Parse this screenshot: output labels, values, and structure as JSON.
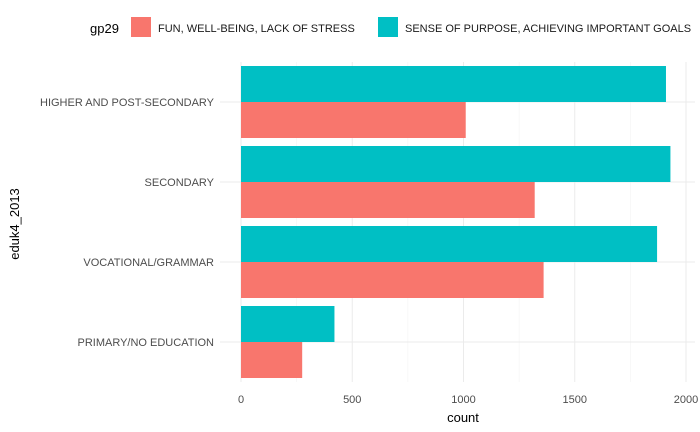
{
  "chart_data": {
    "type": "bar",
    "orientation": "horizontal",
    "xlabel": "count",
    "ylabel": "eduk4_2013",
    "xlim": [
      0,
      2030
    ],
    "x_ticks": [
      0,
      500,
      1000,
      1500,
      2000
    ],
    "x_tick_labels": [
      "0",
      "500",
      "1000",
      "1500",
      "2000"
    ],
    "grid": true,
    "legend_position": "top",
    "legend_title": "gp29",
    "categories": [
      "HIGHER AND POST-SECONDARY",
      "SECONDARY",
      "VOCATIONAL/GRAMMAR",
      "PRIMARY/NO EDUCATION"
    ],
    "series": [
      {
        "name": "FUN, WELL-BEING, LACK OF STRESS",
        "color": "#F8766D",
        "values": [
          1010,
          1320,
          1360,
          275
        ]
      },
      {
        "name": "SENSE OF PURPOSE, ACHIEVING IMPORTANT GOALS",
        "color": "#00BFC4",
        "values": [
          1910,
          1930,
          1870,
          420
        ]
      }
    ]
  }
}
